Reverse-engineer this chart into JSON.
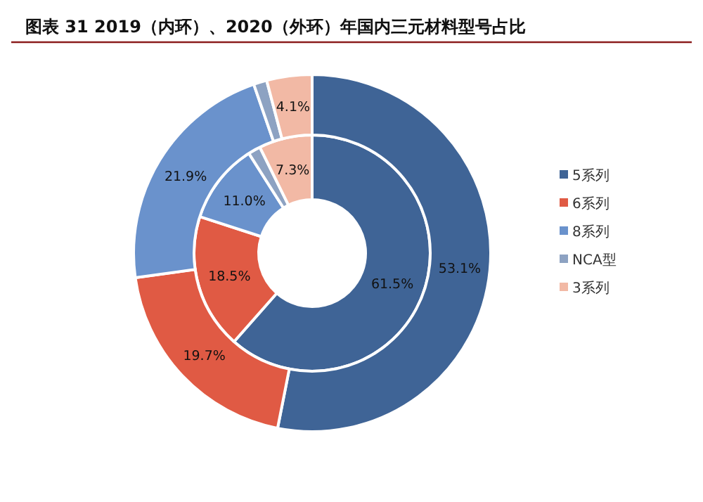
{
  "chart_data": {
    "type": "donut",
    "title": "图表 31 2019（内环）、2020（外环）年国内三元材料型号占比",
    "categories": [
      "5系列",
      "6系列",
      "8系列",
      "NCA型",
      "3系列"
    ],
    "colors": [
      "#3f6496",
      "#e05a44",
      "#6a92cc",
      "#8da2c2",
      "#f2b9a5"
    ],
    "series": [
      {
        "values": [
          61.5,
          18.5,
          11.0,
          1.7,
          7.3
        ],
        "value_labels": [
          "61.5%",
          "18.5%",
          "11.0%",
          null,
          "7.3%"
        ]
      },
      {
        "values": [
          53.1,
          19.7,
          21.9,
          1.2,
          4.1
        ],
        "value_labels": [
          "53.1%",
          "19.7%",
          "21.9%",
          null,
          "4.1%"
        ]
      }
    ],
    "legend": "right"
  }
}
